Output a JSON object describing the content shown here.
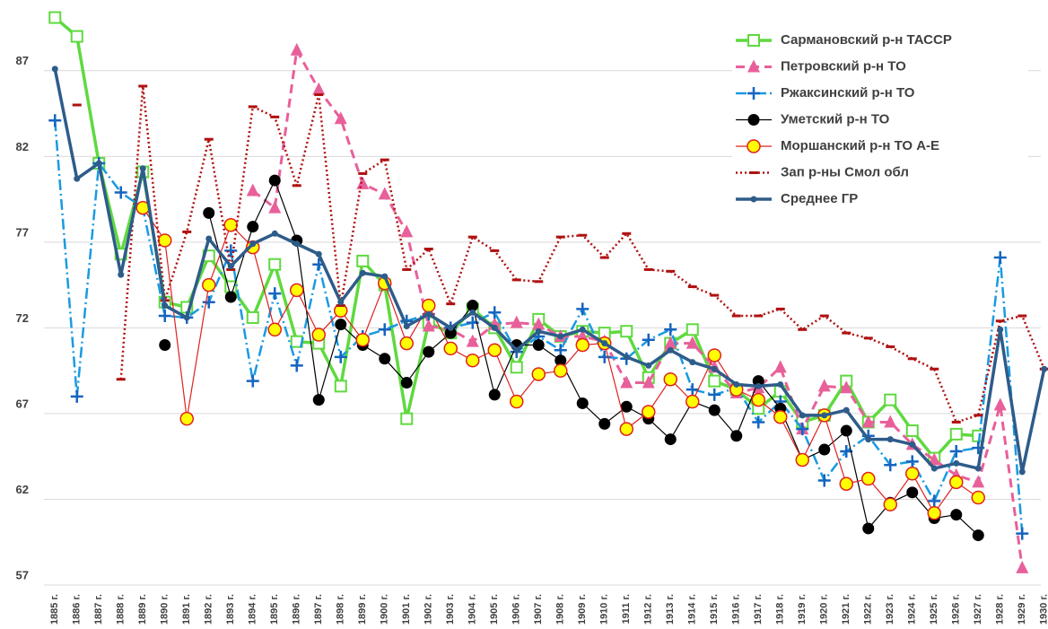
{
  "chart_data": {
    "type": "line",
    "categories": [
      "1885 г.",
      "1886 г.",
      "1887 г.",
      "1888 г.",
      "1889 г.",
      "1890 г.",
      "1891 г.",
      "1892 г.",
      "1893 г.",
      "1894 г.",
      "1895 г.",
      "1896 г.",
      "1897 г.",
      "1898 г.",
      "1899 г.",
      "1900 г.",
      "1901 г.",
      "1902 г.",
      "1903 г.",
      "1904 г.",
      "1905 г.",
      "1906 г.",
      "1907 г.",
      "1908 г.",
      "1909 г.",
      "1910 г.",
      "1911 г.",
      "1912 г.",
      "1913 г.",
      "1914 г.",
      "1915 г.",
      "1916 г.",
      "1917 г.",
      "1918 г.",
      "1919 г.",
      "1920 г.",
      "1921 г.",
      "1922 г.",
      "1923 г.",
      "1924 г.",
      "1925 г.",
      "1926 г.",
      "1927 г.",
      "1928 г.",
      "1929 г.",
      "1930 г."
    ],
    "ylim": [
      57,
      90.6
    ],
    "yticks": [
      57,
      62,
      67,
      72,
      77,
      82,
      87
    ],
    "grid": true,
    "legend": "top-right",
    "series": [
      {
        "name": "Сармановский р-н ТАССР",
        "color": "#5fd93f",
        "marker": "square",
        "line_style": "solid",
        "values": [
          90.1,
          89.0,
          81.6,
          76.3,
          81.1,
          73.5,
          73.2,
          76.2,
          74.4,
          72.6,
          75.7,
          71.2,
          71.1,
          68.6,
          75.9,
          74.5,
          66.7,
          72.3,
          71.7,
          73.1,
          72.0,
          69.7,
          72.5,
          71.5,
          71.8,
          71.7,
          71.8,
          69.1,
          71.1,
          71.9,
          68.9,
          68.4,
          67.3,
          68.3,
          66.5,
          66.9,
          68.9,
          66.5,
          67.8,
          66.0,
          64.4,
          65.8,
          65.7,
          null,
          null,
          null
        ]
      },
      {
        "name": "Петровский р-н ТО",
        "color": "#e8609a",
        "marker": "triangle",
        "line_style": "dashed",
        "values": [
          null,
          null,
          null,
          null,
          null,
          null,
          null,
          null,
          null,
          80.0,
          79.0,
          88.2,
          85.9,
          84.2,
          80.4,
          79.8,
          77.6,
          72.1,
          71.9,
          71.2,
          72.2,
          72.3,
          72.2,
          71.5,
          71.5,
          71.2,
          68.8,
          68.8,
          71.1,
          71.1,
          69.7,
          68.2,
          68.5,
          69.7,
          66.1,
          68.6,
          68.5,
          66.5,
          66.5,
          65.2,
          64.3,
          63.4,
          63.0,
          67.5,
          58.0,
          null
        ]
      },
      {
        "name": "Ржаксинский р-н ТО",
        "color": "#1a9ae0",
        "marker": "plus",
        "line_style": "dashdot",
        "values": [
          84.1,
          68.0,
          81.6,
          79.9,
          79.0,
          72.7,
          72.6,
          73.5,
          76.5,
          68.9,
          74.0,
          69.8,
          75.7,
          70.3,
          71.5,
          71.9,
          72.4,
          72.8,
          72.0,
          72.3,
          72.9,
          70.6,
          71.5,
          70.7,
          73.1,
          70.3,
          70.2,
          71.3,
          71.9,
          68.4,
          68.1,
          68.5,
          66.5,
          67.7,
          66.1,
          63.1,
          64.8,
          65.7,
          64.0,
          64.2,
          61.9,
          64.8,
          65.0,
          76.1,
          60.0,
          null
        ]
      },
      {
        "name": "Уметский р-н ТО",
        "color": "#000000",
        "marker": "circle",
        "line_style": "thin",
        "values": [
          null,
          null,
          null,
          null,
          null,
          71.0,
          null,
          78.7,
          73.8,
          77.9,
          80.6,
          77.1,
          67.8,
          72.2,
          71.0,
          70.2,
          68.8,
          70.6,
          71.7,
          73.3,
          68.1,
          71.0,
          71.0,
          70.1,
          67.6,
          66.4,
          67.4,
          66.7,
          65.5,
          67.7,
          67.2,
          65.7,
          68.9,
          67.3,
          64.3,
          64.9,
          66.0,
          60.3,
          61.8,
          62.4,
          60.9,
          61.1,
          59.9,
          null,
          null,
          null
        ]
      },
      {
        "name": "Моршанский р-н ТО А-Е",
        "color": "#e02020",
        "marker": "ring",
        "line_style": "thin",
        "values": [
          null,
          null,
          null,
          null,
          79.0,
          77.1,
          66.7,
          74.5,
          78.0,
          76.7,
          71.9,
          74.2,
          71.6,
          73.0,
          71.3,
          74.6,
          71.1,
          73.3,
          70.8,
          70.1,
          70.7,
          67.7,
          69.3,
          69.5,
          71.0,
          71.1,
          66.1,
          67.1,
          69.0,
          67.7,
          70.4,
          68.4,
          67.8,
          66.8,
          64.3,
          66.9,
          62.9,
          63.2,
          61.7,
          63.5,
          61.2,
          63.0,
          62.1,
          null,
          null,
          null
        ]
      },
      {
        "name": "Зап р-ны Смол обл",
        "color": "#b01010",
        "marker": "dash",
        "line_style": "dotted",
        "values": [
          null,
          85.0,
          null,
          69.0,
          86.1,
          73.6,
          77.6,
          83.0,
          75.4,
          84.9,
          84.3,
          80.3,
          85.6,
          73.3,
          81.0,
          81.8,
          75.4,
          76.6,
          73.4,
          77.3,
          76.5,
          74.8,
          74.7,
          77.3,
          77.4,
          76.1,
          77.5,
          75.4,
          75.3,
          74.4,
          73.9,
          72.7,
          72.7,
          73.1,
          71.9,
          72.7,
          71.7,
          71.4,
          70.9,
          70.2,
          69.6,
          66.5,
          66.9,
          72.4,
          72.7,
          69.6
        ]
      },
      {
        "name": "Среднее ГР",
        "color": "#2e5c8a",
        "marker": "dot",
        "line_style": "thick",
        "values": [
          87.1,
          80.7,
          81.6,
          75.1,
          81.3,
          73.3,
          72.6,
          77.2,
          75.6,
          76.9,
          77.5,
          76.9,
          76.3,
          73.5,
          75.2,
          75.0,
          72.1,
          72.8,
          72.0,
          72.9,
          72.0,
          70.7,
          71.8,
          71.5,
          71.9,
          71.1,
          70.3,
          69.8,
          70.7,
          70.0,
          69.6,
          68.7,
          68.6,
          68.7,
          66.9,
          66.9,
          67.2,
          65.5,
          65.5,
          65.2,
          63.8,
          64.1,
          63.8,
          71.9,
          63.6,
          69.6
        ]
      }
    ]
  }
}
